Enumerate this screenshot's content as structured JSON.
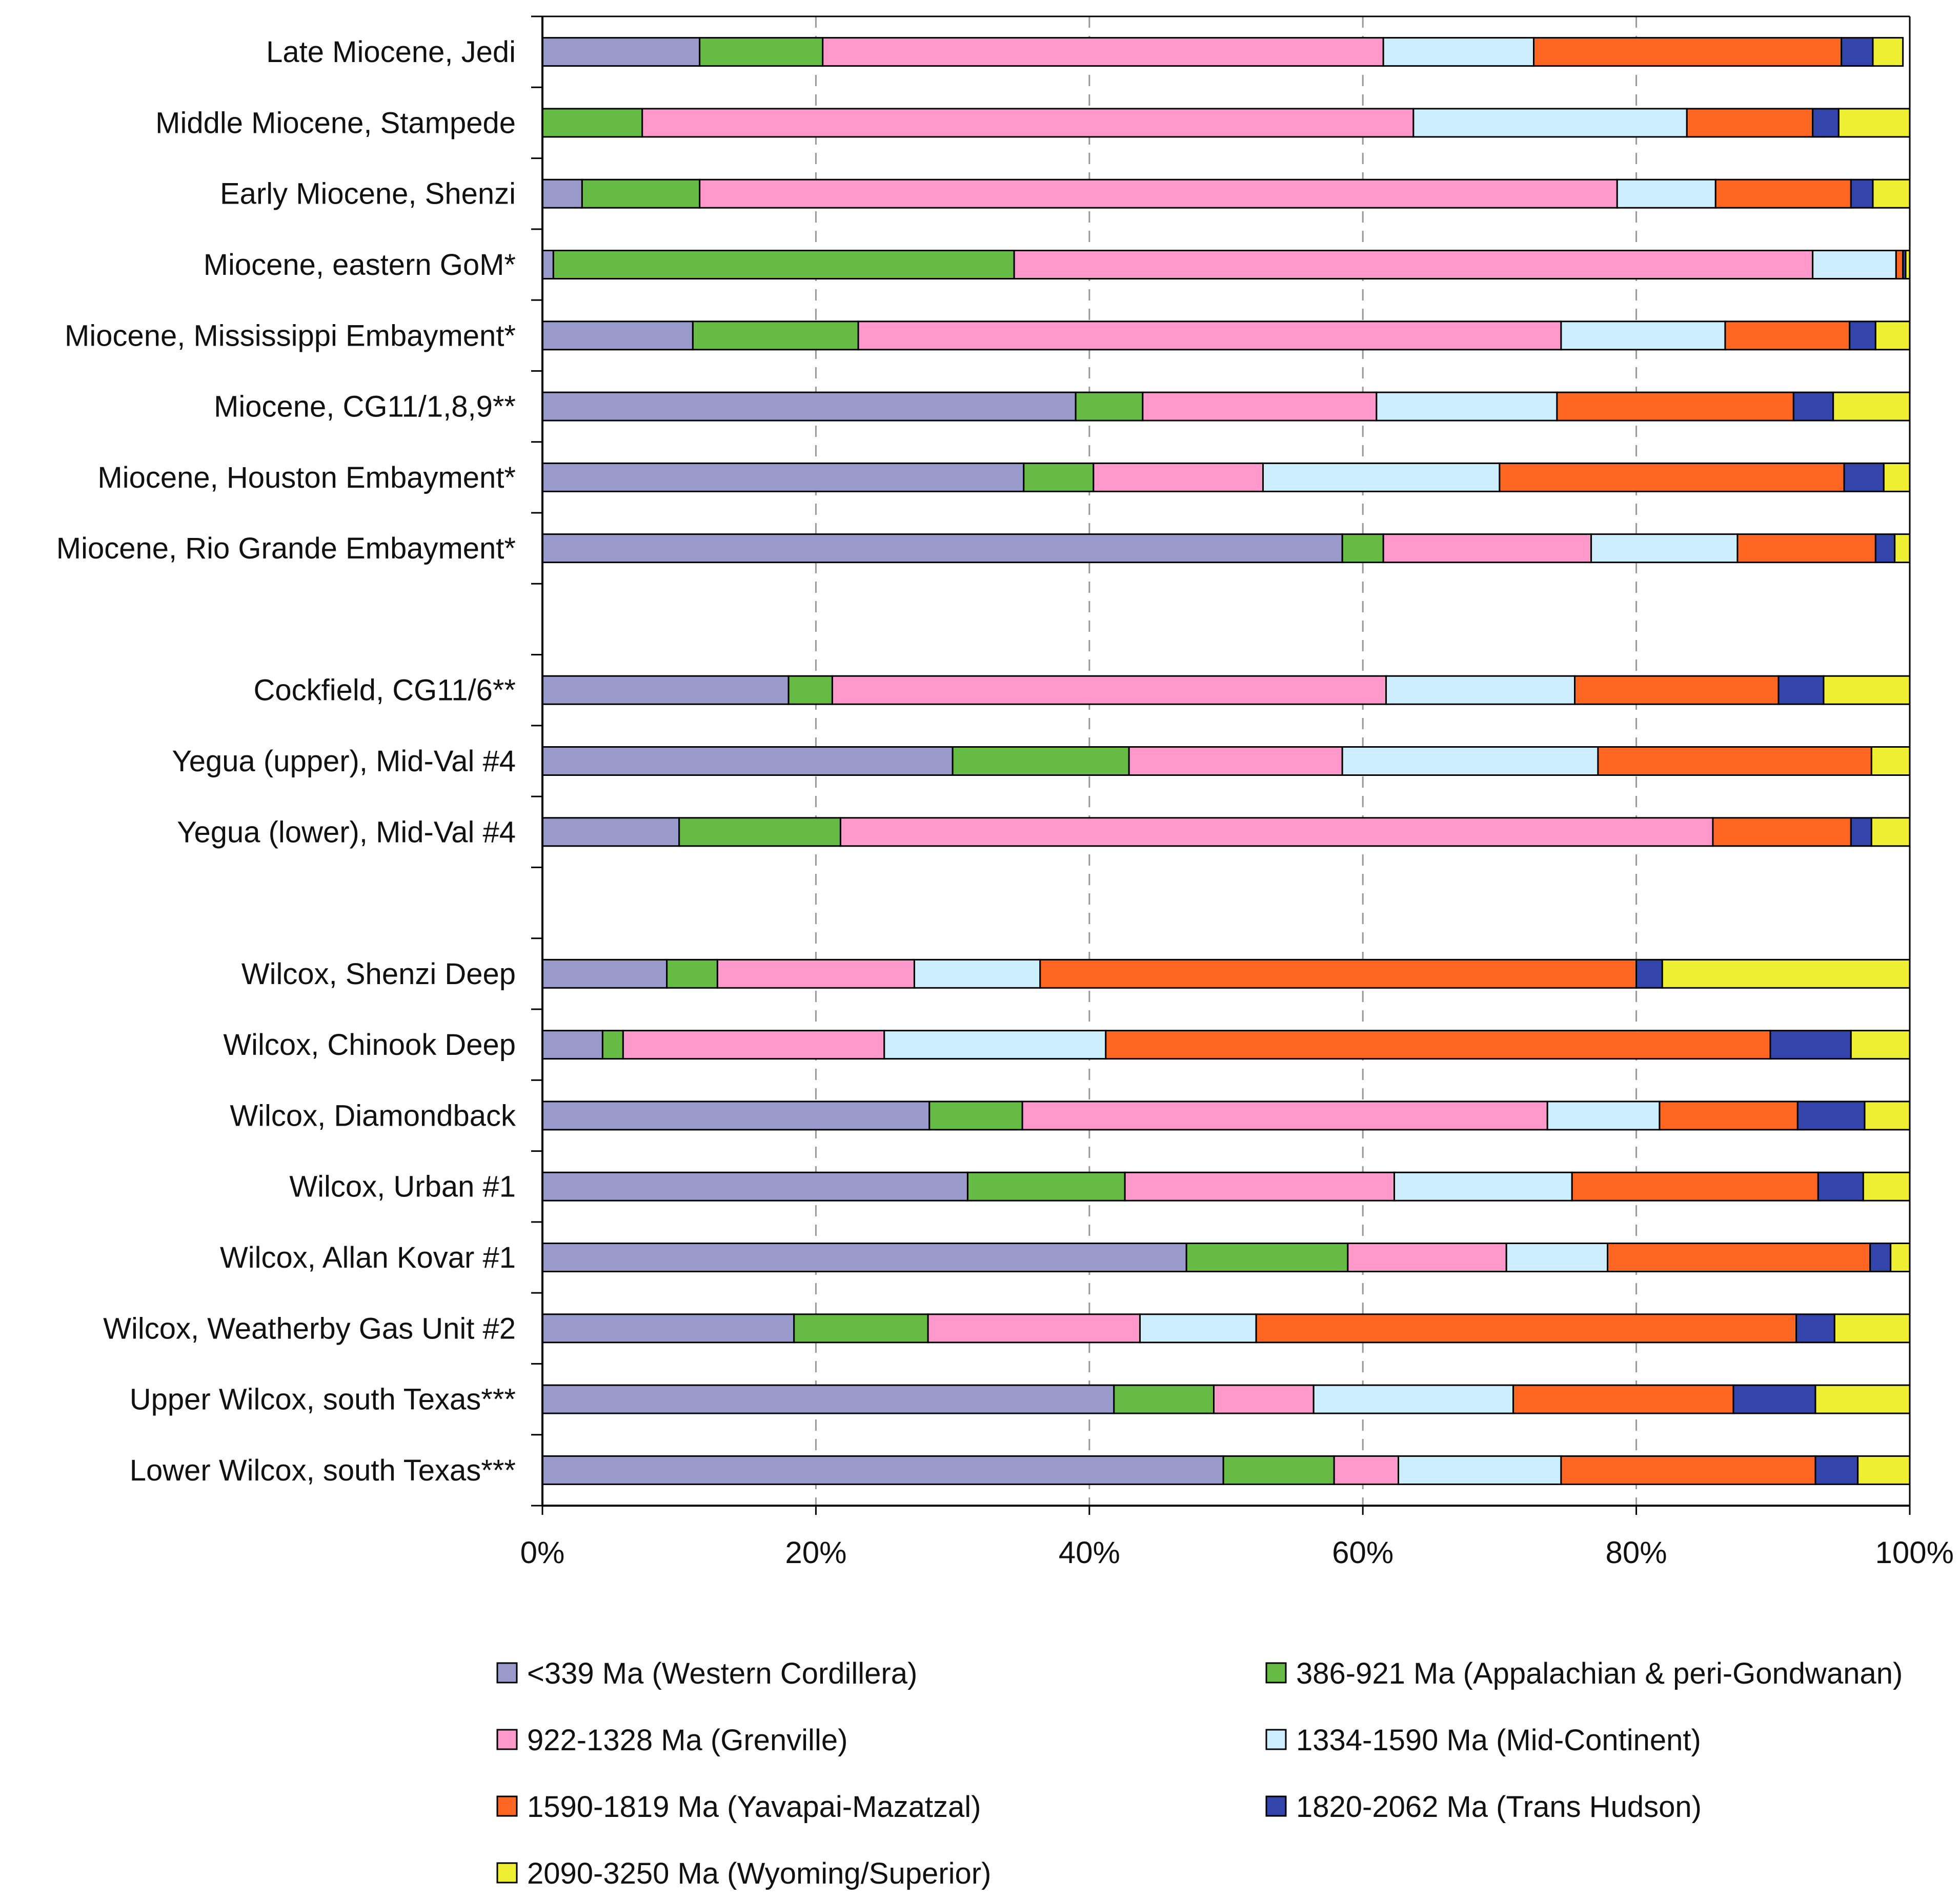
{
  "chart_data": {
    "type": "bar",
    "orientation": "horizontal",
    "stacked": true,
    "percent": true,
    "xlim": [
      0,
      100
    ],
    "x_ticks": [
      "0%",
      "20%",
      "40%",
      "60%",
      "80%",
      "100%"
    ],
    "grid": "vertical dashed",
    "title": "",
    "xlabel": "",
    "ylabel": "",
    "legend_position": "bottom",
    "rows": [
      {
        "label": "Late Miocene, Jedi",
        "values": [
          11.5,
          9,
          41,
          11,
          22.5,
          2.3,
          2.2
        ]
      },
      {
        "label": "Middle Miocene, Stampede",
        "values": [
          0,
          7.3,
          56.4,
          20,
          9.2,
          1.9,
          5.2
        ]
      },
      {
        "label": "Early Miocene, Shenzi",
        "values": [
          2.9,
          8.6,
          67.1,
          7.2,
          9.9,
          1.6,
          2.7
        ]
      },
      {
        "label": "Miocene, eastern GoM*",
        "values": [
          0.8,
          33.7,
          58.4,
          6.1,
          0.5,
          0.2,
          0.3
        ]
      },
      {
        "label": "Miocene, Mississippi Embayment*",
        "values": [
          11,
          12.1,
          51.4,
          12,
          9.1,
          1.9,
          2.5
        ]
      },
      {
        "label": "Miocene, CG11/1,8,9**",
        "values": [
          39,
          4.9,
          17.1,
          13.2,
          17.3,
          2.9,
          5.6
        ]
      },
      {
        "label": "Miocene, Houston Embayment*",
        "values": [
          35.2,
          5.1,
          12.4,
          17.3,
          25.2,
          2.9,
          1.9
        ]
      },
      {
        "label": "Miocene, Rio Grande Embayment*",
        "values": [
          58.5,
          3,
          15.2,
          10.7,
          10.1,
          1.4,
          1.1
        ]
      },
      {
        "label": "",
        "values": [],
        "gap": true
      },
      {
        "label": "Cockfield, CG11/6**",
        "values": [
          18,
          3.2,
          40.5,
          13.8,
          14.9,
          3.3,
          6.3
        ]
      },
      {
        "label": "Yegua (upper), Mid-Val #4",
        "values": [
          30,
          12.9,
          15.6,
          18.7,
          20,
          0,
          2.8
        ]
      },
      {
        "label": "Yegua (lower), Mid-Val #4",
        "values": [
          10,
          11.8,
          63.8,
          0,
          10.1,
          1.5,
          2.8
        ]
      },
      {
        "label": "",
        "values": [],
        "gap": true
      },
      {
        "label": "Wilcox, Shenzi Deep",
        "values": [
          9.1,
          3.7,
          14.4,
          9.2,
          43.6,
          1.9,
          18.1
        ]
      },
      {
        "label": "Wilcox, Chinook Deep",
        "values": [
          4.4,
          1.5,
          19.1,
          16.2,
          48.6,
          5.9,
          4.3
        ]
      },
      {
        "label": "Wilcox, Diamondback",
        "values": [
          28.3,
          6.8,
          38.4,
          8.2,
          10.1,
          4.9,
          3.3
        ]
      },
      {
        "label": "Wilcox, Urban #1",
        "values": [
          31.1,
          11.5,
          19.7,
          13,
          18,
          3.3,
          3.4
        ]
      },
      {
        "label": "Wilcox, Allan Kovar #1",
        "values": [
          47.1,
          11.8,
          11.6,
          7.4,
          19.2,
          1.5,
          1.4
        ]
      },
      {
        "label": "Wilcox, Weatherby Gas Unit #2",
        "values": [
          18.4,
          9.8,
          15.5,
          8.5,
          39.5,
          2.8,
          5.5
        ]
      },
      {
        "label": "Upper Wilcox, south Texas***",
        "values": [
          41.8,
          7.3,
          7.3,
          14.6,
          16.1,
          6,
          6.9
        ]
      },
      {
        "label": "Lower Wilcox, south Texas***",
        "values": [
          49.8,
          8.1,
          4.7,
          11.9,
          18.6,
          3.1,
          3.8
        ]
      }
    ],
    "series": [
      {
        "name": "<339 Ma (Western Cordillera)",
        "color": "#9999cc"
      },
      {
        "name": "386-921 Ma (Appalachian & peri-Gondwanan)",
        "color": "#66bb44"
      },
      {
        "name": "922-1328 Ma (Grenville)",
        "color": "#ff99cc"
      },
      {
        "name": "1334-1590 Ma (Mid-Continent)",
        "color": "#cceeff"
      },
      {
        "name": "1590-1819 Ma (Yavapai-Mazatzal)",
        "color": "#ff6622"
      },
      {
        "name": "1820-2062 Ma (Trans Hudson)",
        "color": "#3344aa"
      },
      {
        "name": "2090-3250 Ma (Wyoming/Superior)",
        "color": "#eeee33"
      }
    ]
  }
}
